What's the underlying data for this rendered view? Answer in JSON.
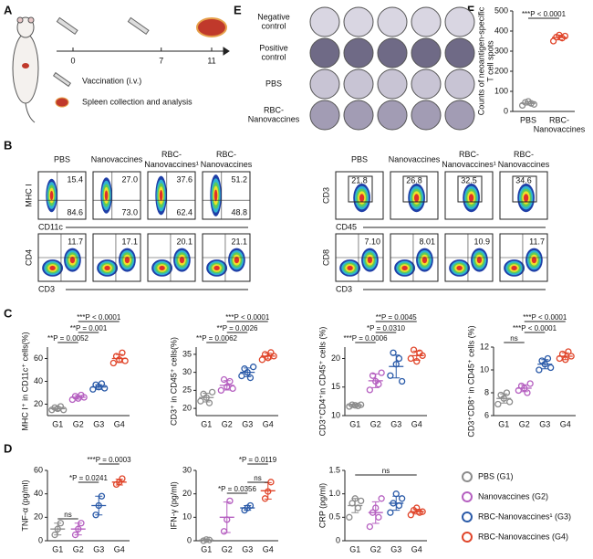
{
  "panel_labels": [
    "A",
    "B",
    "C",
    "D",
    "E",
    "F"
  ],
  "A": {
    "days": [
      0,
      7,
      11
    ],
    "legend": [
      "Vaccination (i.v.)",
      "Spleen collection and analysis"
    ]
  },
  "E": {
    "rows": [
      [
        "Negative",
        "control"
      ],
      [
        "Positive",
        "control"
      ],
      [
        "PBS"
      ],
      [
        "RBC-",
        "Nanovaccines"
      ]
    ]
  },
  "F": {
    "type": "scatter",
    "y_label": [
      "Counts of neoantigen-specific",
      "T cell spots"
    ],
    "categories": [
      [
        "PBS"
      ],
      [
        "RBC-",
        "Nanovaccines"
      ]
    ],
    "colors": [
      "#8c8c8c",
      "#e0452a"
    ],
    "groups": [
      [
        30,
        45,
        50,
        40,
        35
      ],
      [
        350,
        370,
        380,
        365,
        375
      ]
    ],
    "mean": [
      40,
      368
    ],
    "sd": [
      8,
      12
    ],
    "ylim": [
      0,
      500
    ],
    "yticks": [
      0,
      100,
      200,
      300,
      400,
      500
    ],
    "annotations": [
      "***P < 0.0001"
    ]
  },
  "B": {
    "left": {
      "headers": [
        [
          "PBS"
        ],
        [
          "Nanovaccines"
        ],
        [
          "RBC-",
          "Nanovaccines¹"
        ],
        [
          "RBC-",
          "Nanovaccines"
        ]
      ],
      "rows": [
        {
          "y_label": "MHC I",
          "x_label": "CD11c",
          "upper": [
            "15.4",
            "27.0",
            "37.6",
            "51.2"
          ],
          "lower": [
            "84.6",
            "73.0",
            "62.4",
            "48.8"
          ]
        },
        {
          "y_label": "CD4",
          "x_label": "CD3",
          "upper": [
            "11.7",
            "17.1",
            "20.1",
            "21.1"
          ]
        }
      ]
    },
    "right": {
      "headers": [
        [
          "PBS"
        ],
        [
          "Nanovaccines"
        ],
        [
          "RBC-",
          "Nanovaccines¹"
        ],
        [
          "RBC-",
          "Nanovaccines"
        ]
      ],
      "rows": [
        {
          "y_label": "CD3",
          "x_label": "CD45",
          "upper": [
            "21.8",
            "26.8",
            "32.5",
            "34.6"
          ]
        },
        {
          "y_label": "CD8",
          "x_label": "CD3",
          "upper": [
            "7.10",
            "8.01",
            "10.9",
            "11.7"
          ]
        }
      ]
    }
  },
  "C": {
    "charts": [
      {
        "type": "scatter",
        "y_label": "MHC I⁺ in CD11c⁺ cells(%)",
        "categories": [
          "G1",
          "G2",
          "G3",
          "G4"
        ],
        "groups": [
          [
            15,
            17,
            16,
            18,
            15
          ],
          [
            24,
            27,
            25,
            28,
            26
          ],
          [
            33,
            37,
            35,
            38,
            34
          ],
          [
            56,
            62,
            59,
            65,
            58
          ]
        ],
        "mean": [
          16,
          26,
          35,
          60
        ],
        "sd": [
          1.5,
          1.6,
          2,
          3.5
        ],
        "ylim": [
          10,
          70
        ],
        "yticks": [
          20,
          40,
          60
        ],
        "annotations": [
          "**P = 0.0052",
          "**P = 0.001",
          "***P < 0.0001"
        ]
      },
      {
        "type": "scatter",
        "y_label": "CD3⁺ in CD45⁺ cells(%)",
        "categories": [
          "G1",
          "G2",
          "G3",
          "G4"
        ],
        "groups": [
          [
            22,
            24,
            23,
            21.5,
            24.5
          ],
          [
            25,
            28,
            26,
            27.5,
            25.5
          ],
          [
            29,
            31,
            30,
            28.5,
            31.5
          ],
          [
            33.5,
            35,
            34,
            35.5,
            34.5
          ]
        ],
        "mean": [
          23,
          26.4,
          30,
          34.5
        ],
        "sd": [
          1.2,
          1.3,
          1.2,
          0.8
        ],
        "ylim": [
          18,
          37
        ],
        "yticks": [
          20,
          25,
          30,
          35
        ],
        "annotations": [
          "**P = 0.0062",
          "**P = 0.0026",
          "***P < 0.0001"
        ]
      },
      {
        "type": "scatter",
        "y_label": "CD3⁺CD4⁺in CD45⁺ cells (%)",
        "categories": [
          "G1",
          "G2",
          "G3",
          "G4"
        ],
        "groups": [
          [
            11.6,
            11.9,
            11.8,
            11.7,
            11.9
          ],
          [
            14.5,
            17,
            16,
            15.5,
            17.5
          ],
          [
            17,
            21,
            19,
            20,
            16
          ],
          [
            20,
            21.5,
            19.5,
            21,
            20.5
          ]
        ],
        "mean": [
          11.8,
          16.1,
          18.6,
          20.5
        ],
        "sd": [
          0.2,
          1.2,
          2,
          0.8
        ],
        "ylim": [
          10,
          22
        ],
        "yticks": [
          10,
          15,
          20
        ],
        "annotations": [
          "***P = 0.0006",
          "*P = 0.0310",
          "**P = 0.0045"
        ]
      },
      {
        "type": "scatter",
        "y_label": "CD3⁺CD8⁺ in CD45⁺ cells (%)",
        "categories": [
          "G1",
          "G2",
          "G3",
          "G4"
        ],
        "groups": [
          [
            7,
            7.8,
            7.5,
            8,
            7.2
          ],
          [
            8.2,
            8.6,
            8.4,
            8,
            8.8
          ],
          [
            10,
            10.8,
            10.5,
            11,
            10.2
          ],
          [
            11,
            11.4,
            10.9,
            11.6,
            11.2
          ]
        ],
        "mean": [
          7.5,
          8.4,
          10.5,
          11.2
        ],
        "sd": [
          0.4,
          0.3,
          0.4,
          0.3
        ],
        "ylim": [
          6,
          12
        ],
        "yticks": [
          6,
          8,
          10,
          12
        ],
        "annotations": [
          "ns",
          "***P < 0.0001",
          "***P < 0.0001"
        ]
      }
    ]
  },
  "D": {
    "charts": [
      {
        "type": "scatter",
        "y_label": "TNF-α (pg/ml)",
        "categories": [
          "G1",
          "G2",
          "G3",
          "G4"
        ],
        "groups": [
          [
            5,
            10,
            15
          ],
          [
            5,
            10,
            15
          ],
          [
            22,
            30,
            38
          ],
          [
            48,
            50,
            53
          ]
        ],
        "mean": [
          10,
          10,
          30,
          50
        ],
        "sd": [
          5,
          5,
          8,
          2.5
        ],
        "ylim": [
          0,
          60
        ],
        "yticks": [
          0,
          20,
          40,
          60
        ],
        "annotations": [
          "ns",
          "*P = 0.0241",
          "***P = 0.0003"
        ]
      },
      {
        "type": "scatter",
        "y_label": "IFN-γ (pg/ml)",
        "categories": [
          "G1",
          "G2",
          "G3",
          "G4"
        ],
        "groups": [
          [
            0,
            0.5,
            0.3
          ],
          [
            4,
            9,
            17
          ],
          [
            13,
            14,
            15
          ],
          [
            18,
            21,
            25
          ]
        ],
        "mean": [
          0.3,
          10,
          14,
          21.3
        ],
        "sd": [
          0.3,
          6.5,
          1,
          3.5
        ],
        "ylim": [
          0,
          30
        ],
        "yticks": [
          0,
          10,
          20,
          30
        ],
        "annotations": [
          "*P = 0.0356",
          "ns",
          "*P = 0.0119"
        ]
      },
      {
        "type": "scatter",
        "y_label": "CRP (pg/ml)",
        "categories": [
          "G1",
          "G2",
          "G3",
          "G4"
        ],
        "groups": [
          [
            0.5,
            0.8,
            0.9,
            0.7,
            0.85
          ],
          [
            0.3,
            0.6,
            0.7,
            0.5,
            0.9
          ],
          [
            0.6,
            0.8,
            1.0,
            0.75,
            0.9
          ],
          [
            0.55,
            0.65,
            0.7,
            0.6,
            0.62
          ]
        ],
        "mean": [
          0.75,
          0.6,
          0.8,
          0.62
        ],
        "sd": [
          0.15,
          0.23,
          0.15,
          0.05
        ],
        "ylim": [
          0,
          1.5
        ],
        "yticks": [
          0,
          0.5,
          {
            "value": 1,
            "label": "1.0"
          },
          1.5
        ],
        "annotations": [
          "ns"
        ]
      }
    ]
  },
  "legend": [
    {
      "label": "PBS (G1)",
      "color": "#8c8c8c"
    },
    {
      "label": "Nanovaccines (G2)",
      "color": "#b55fc0"
    },
    {
      "label": "RBC-Nanovaccines¹ (G3)",
      "color": "#2a5aa8"
    },
    {
      "label": "RBC-Nanovaccines (G4)",
      "color": "#e0452a"
    }
  ]
}
